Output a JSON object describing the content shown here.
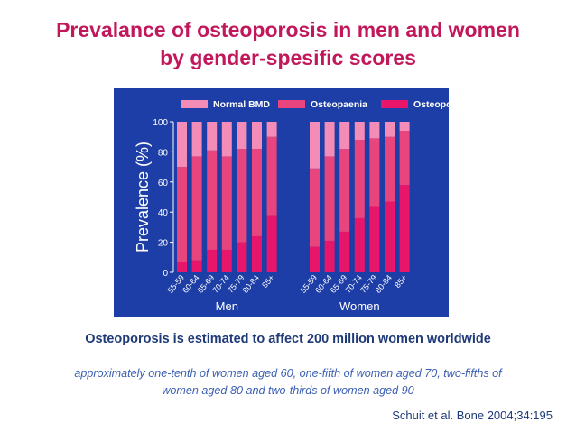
{
  "slide": {
    "title_line1": "Prevalance of osteoporosis in men and women",
    "title_line2": "by gender-spesific scores",
    "caption": "Osteoporosis is estimated to affect 200 million women worldwide",
    "note_line1": "approximately one-tenth of women aged 60, one-fifth of women aged 70, two-fifths of",
    "note_line2": "women aged 80 and two-thirds of women aged 90",
    "citation": "Schuit et al. Bone 2004;34:195"
  },
  "colors": {
    "title": "#c2185b",
    "chart_background": "#1d3ea6",
    "normal_bmd": "#f48cb8",
    "osteopaenia": "#e8457f",
    "osteoporosis": "#e8166b"
  },
  "chart_data": {
    "type": "bar",
    "stacked": true,
    "ylabel": "Prevalence (%)",
    "ylim": [
      0,
      100
    ],
    "yticks": [
      0,
      20,
      40,
      60,
      80,
      100
    ],
    "legend_position": "top",
    "legend": [
      "Normal BMD",
      "Osteopaenia",
      "Osteoporosis"
    ],
    "groups": [
      {
        "name": "Men",
        "categories": [
          "55-59",
          "60-64",
          "65-69",
          "70-74",
          "75-79",
          "80-84",
          "85+"
        ],
        "series": [
          {
            "name": "Osteoporosis",
            "values": [
              7,
              8,
              15,
              15,
              20,
              24,
              38
            ]
          },
          {
            "name": "Osteopaenia",
            "values": [
              63,
              69,
              66,
              62,
              62,
              58,
              52
            ]
          },
          {
            "name": "Normal BMD",
            "values": [
              30,
              23,
              19,
              23,
              18,
              18,
              10
            ]
          }
        ]
      },
      {
        "name": "Women",
        "categories": [
          "55-59",
          "60-64",
          "65-69",
          "70-74",
          "75-79",
          "80-84",
          "85+"
        ],
        "series": [
          {
            "name": "Osteoporosis",
            "values": [
              17,
              21,
              27,
              36,
              44,
              47,
              58
            ]
          },
          {
            "name": "Osteopaenia",
            "values": [
              52,
              56,
              55,
              52,
              45,
              43,
              36
            ]
          },
          {
            "name": "Normal BMD",
            "values": [
              31,
              23,
              18,
              12,
              11,
              10,
              6
            ]
          }
        ]
      }
    ]
  }
}
